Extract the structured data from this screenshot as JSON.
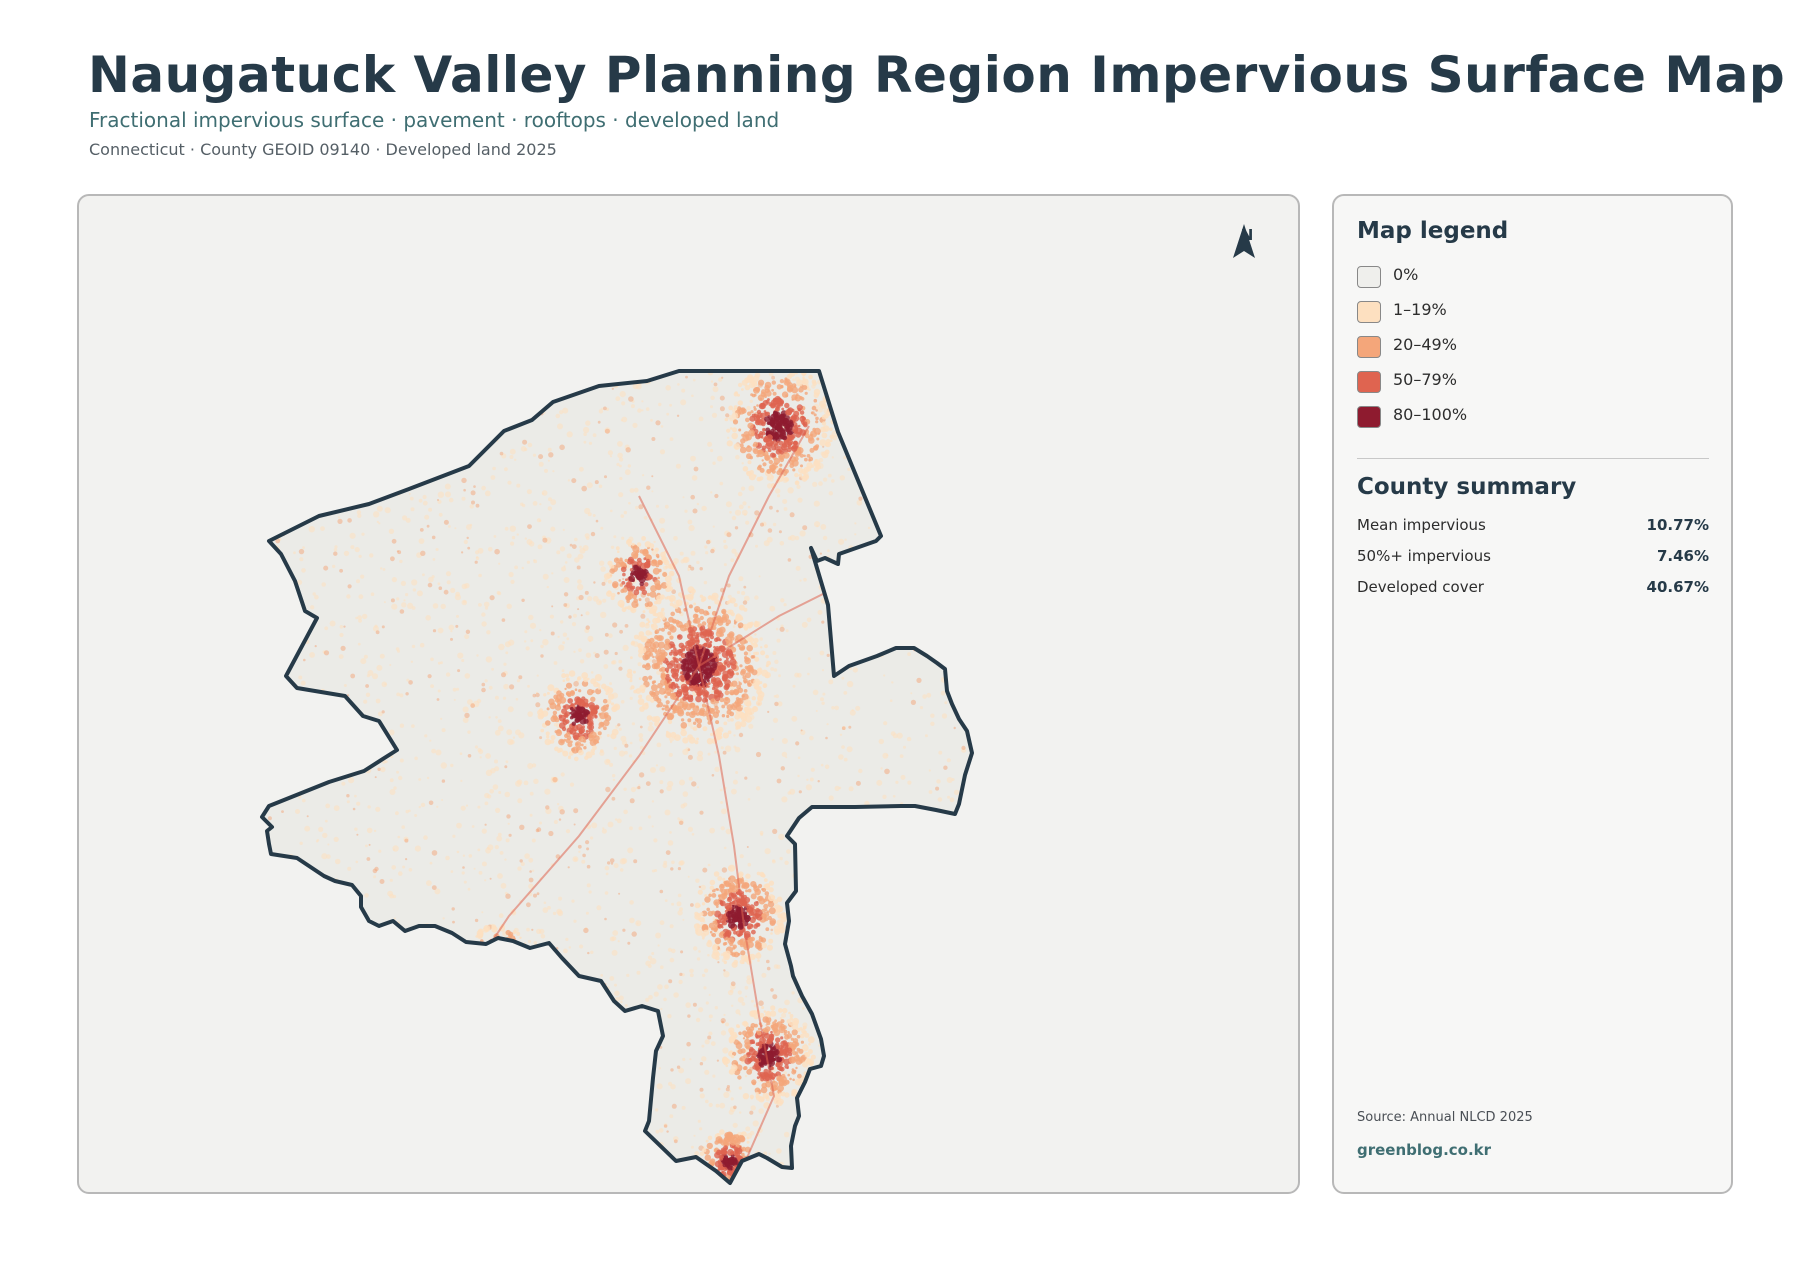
{
  "header": {
    "title": "Naugatuck Valley Planning Region Impervious Surface Map",
    "subtitle": "Fractional impervious surface · pavement · rooftops · developed land",
    "meta": "Connecticut · County GEOID 09140 · Developed land 2025"
  },
  "map": {
    "north_label": "N",
    "colors": {
      "background": "#f2f2f0",
      "land": "#ebebe7",
      "boundary": "#263a48"
    }
  },
  "legend": {
    "title": "Map legend",
    "items": [
      {
        "label": "0%",
        "color": "#efefec"
      },
      {
        "label": "1–19%",
        "color": "#fde0c0"
      },
      {
        "label": "20–49%",
        "color": "#f4a67a"
      },
      {
        "label": "50–79%",
        "color": "#df6450"
      },
      {
        "label": "80–100%",
        "color": "#8e1b2f"
      }
    ]
  },
  "summary": {
    "title": "County summary",
    "rows": [
      {
        "label": "Mean impervious",
        "value": "10.77%"
      },
      {
        "label": "50%+ impervious",
        "value": "7.46%"
      },
      {
        "label": "Developed cover",
        "value": "40.67%"
      }
    ]
  },
  "footer": {
    "source": "Source: Annual NLCD 2025",
    "site": "greenblog.co.kr"
  }
}
